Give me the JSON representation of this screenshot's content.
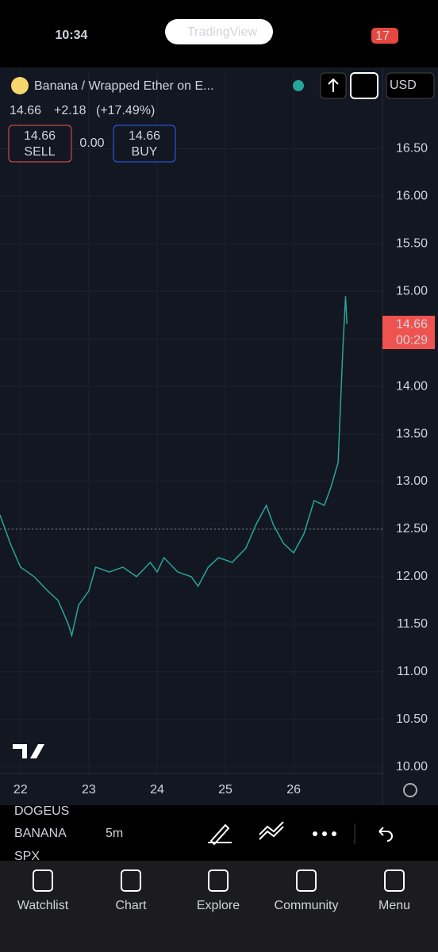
{
  "status_bar": {
    "time": "10:34",
    "app": "TradingView",
    "battery": "17"
  },
  "header": {
    "symbol": "Banana / Wrapped Ether on E...",
    "currency": "USD",
    "price": "14.66",
    "change": "+2.18",
    "change_pct": "(+17.49%)",
    "sell_price": "14.66",
    "sell": "SELL",
    "spread": "0.00",
    "buy_price": "14.66",
    "buy": "BUY"
  },
  "chart_data": {
    "type": "line",
    "color": "#26a69a",
    "x": [
      21.7,
      21.85,
      22.0,
      22.2,
      22.4,
      22.55,
      22.7,
      22.75,
      22.85,
      23.0,
      23.1,
      23.3,
      23.5,
      23.7,
      23.9,
      24.0,
      24.1,
      24.3,
      24.5,
      24.6,
      24.75,
      24.9,
      25.1,
      25.3,
      25.45,
      25.6,
      25.7,
      25.85,
      26.0,
      26.15,
      26.3,
      26.45,
      26.55,
      26.65,
      26.72,
      26.76,
      26.78
    ],
    "values": [
      12.65,
      12.35,
      12.1,
      12.0,
      11.85,
      11.75,
      11.5,
      11.38,
      11.7,
      11.85,
      12.1,
      12.05,
      12.1,
      12.0,
      12.15,
      12.05,
      12.2,
      12.05,
      12.0,
      11.9,
      12.1,
      12.2,
      12.15,
      12.3,
      12.55,
      12.75,
      12.55,
      12.35,
      12.25,
      12.45,
      12.8,
      12.75,
      12.95,
      13.2,
      14.4,
      14.95,
      14.66
    ],
    "xlim": [
      21.7,
      27.3
    ],
    "xticks": [
      22,
      23,
      24,
      25,
      26
    ],
    "ylim": [
      9.93,
      17.33
    ],
    "yticks": [
      {
        "value": 10,
        "label": "10.00"
      },
      {
        "value": 10.5,
        "label": "10.50"
      },
      {
        "value": 11,
        "label": "11.00"
      },
      {
        "value": 11.5,
        "label": "11.50"
      },
      {
        "value": 12,
        "label": "12.00"
      },
      {
        "value": 12.5,
        "label": "12.50"
      },
      {
        "value": 13,
        "label": "13.00"
      },
      {
        "value": 13.5,
        "label": "13.50"
      },
      {
        "value": 14,
        "label": "14.00"
      },
      {
        "value": 14.5,
        "label": "14.50"
      },
      {
        "value": 15,
        "label": "15.00"
      },
      {
        "value": 15.5,
        "label": "15.50"
      },
      {
        "value": 16,
        "label": "16.00"
      },
      {
        "value": 16.5,
        "label": "16.50"
      }
    ],
    "grid": true,
    "reference_price": 12.5,
    "last_price": {
      "value": 14.66,
      "label": "14.66"
    },
    "countdown": "00:29"
  },
  "toolbar": {
    "symbol": "BANANA",
    "interval": "5m",
    "prev_symbol": "DOGEUS",
    "next_symbol": "SPX"
  },
  "tabs": [
    "Watchlist",
    "Chart",
    "Explore",
    "Community",
    "Menu"
  ]
}
